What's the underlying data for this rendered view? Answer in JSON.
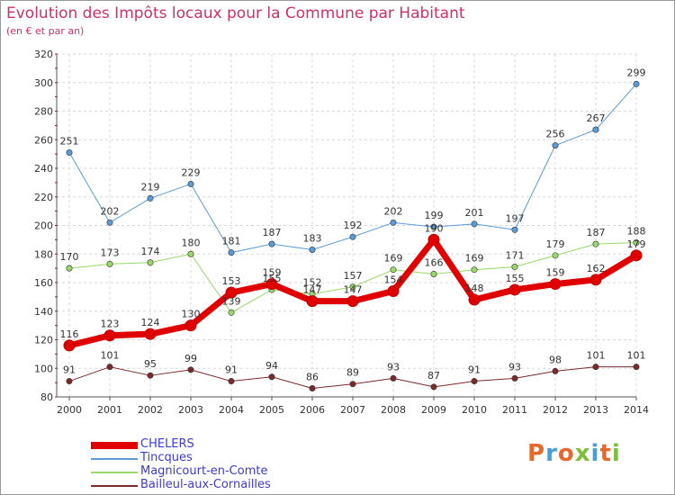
{
  "header": {
    "title": "Evolution des Impôts locaux pour la Commune par Habitant",
    "subtitle": "(en € et par an)"
  },
  "logo": {
    "text": "Proxiti",
    "colors": [
      "#e8672a",
      "#4a9ed8",
      "#e8672a",
      "#7bbf3a",
      "#4a9ed8",
      "#e8672a",
      "#7bbf3a"
    ]
  },
  "chart_data": {
    "type": "line",
    "x": [
      2000,
      2001,
      2002,
      2003,
      2004,
      2005,
      2006,
      2007,
      2008,
      2009,
      2010,
      2011,
      2012,
      2013,
      2014
    ],
    "ylim": [
      80,
      320
    ],
    "yticks": [
      80,
      100,
      120,
      140,
      160,
      180,
      200,
      220,
      240,
      260,
      280,
      300,
      320
    ],
    "grid": true,
    "legend_position": "bottom-left",
    "series": [
      {
        "name": "CHELERS",
        "color": "#e00000",
        "width": 7,
        "values": [
          116,
          123,
          124,
          130,
          153,
          159,
          147,
          147,
          154,
          190,
          148,
          155,
          159,
          162,
          179
        ],
        "labels": [
          "116",
          "123",
          "124",
          "130",
          "153",
          "159",
          "147",
          "147",
          "154",
          "190",
          "148",
          "155",
          "159",
          "162",
          "179"
        ]
      },
      {
        "name": "Tincques",
        "color": "#5b9bd5",
        "width": 1,
        "values": [
          251,
          202,
          219,
          229,
          181,
          187,
          183,
          192,
          202,
          199,
          201,
          197,
          256,
          267,
          299
        ],
        "labels": [
          "251",
          "202",
          "219",
          "229",
          "181",
          "187",
          "183",
          "192",
          "202",
          "199",
          "201",
          "197",
          "256",
          "267",
          "299"
        ]
      },
      {
        "name": "Magnicourt-en-Comte",
        "color": "#9ad86a",
        "width": 1,
        "values": [
          170,
          173,
          174,
          180,
          139,
          155,
          152,
          157,
          169,
          166,
          169,
          171,
          179,
          187,
          188
        ],
        "labels": [
          "170",
          "173",
          "174",
          "180",
          "139",
          "155",
          "152",
          "157",
          "169",
          "166",
          "169",
          "171",
          "179",
          "187",
          "188"
        ]
      },
      {
        "name": "Bailleul-aux-Cornailles",
        "color": "#7a2a2a",
        "width": 1,
        "values": [
          91,
          101,
          95,
          99,
          91,
          94,
          86,
          89,
          93,
          87,
          91,
          93,
          98,
          101,
          101
        ],
        "labels": [
          "91",
          "101",
          "95",
          "99",
          "91",
          "94",
          "86",
          "89",
          "93",
          "87",
          "91",
          "93",
          "98",
          "101",
          "101"
        ]
      }
    ]
  }
}
